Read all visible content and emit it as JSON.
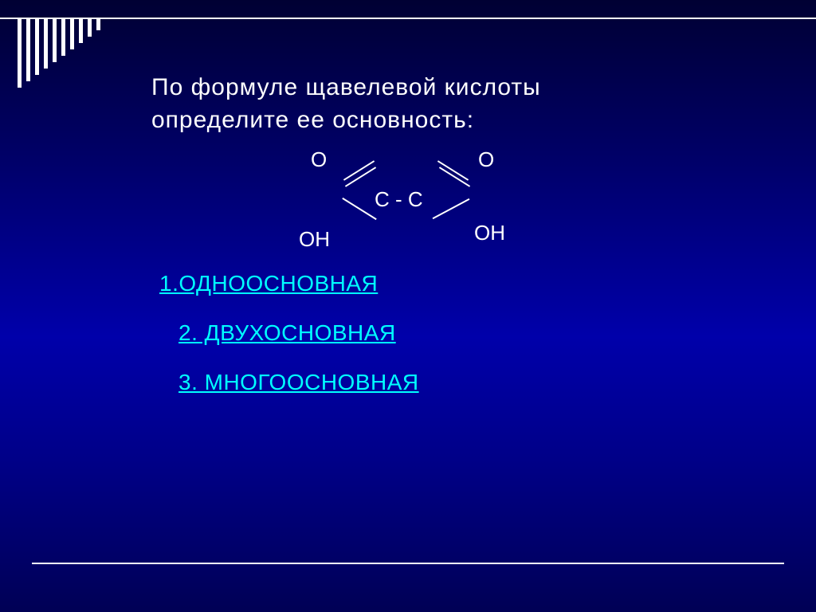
{
  "title_line1": "По  формуле  щавелевой  кислоты",
  "title_line2": "определите  ее  основность:",
  "formula": {
    "o_top_left": "O",
    "o_top_right": "O",
    "c_c": "C - C",
    "oh_left": "OH",
    "oh_right": "OH"
  },
  "options": [
    {
      "label": "1.ОДНООСНОВНАЯ",
      "indent": false
    },
    {
      "label": "2. ДВУХОСНОВНАЯ",
      "indent": true
    },
    {
      "label": "3. МНОГООСНОВНАЯ",
      "indent": true
    }
  ],
  "style": {
    "comb_heights": [
      86,
      78,
      70,
      62,
      54,
      46,
      38,
      30,
      22,
      14
    ],
    "title_color": "#ffffff",
    "option_color": "#00ffff",
    "title_fontsize": 30,
    "option_fontsize": 28,
    "formula_fontsize": 26,
    "background_gradient": [
      "#000033",
      "#000066",
      "#0000aa",
      "#000088",
      "#000055"
    ],
    "rule_color": "#ffffff"
  }
}
